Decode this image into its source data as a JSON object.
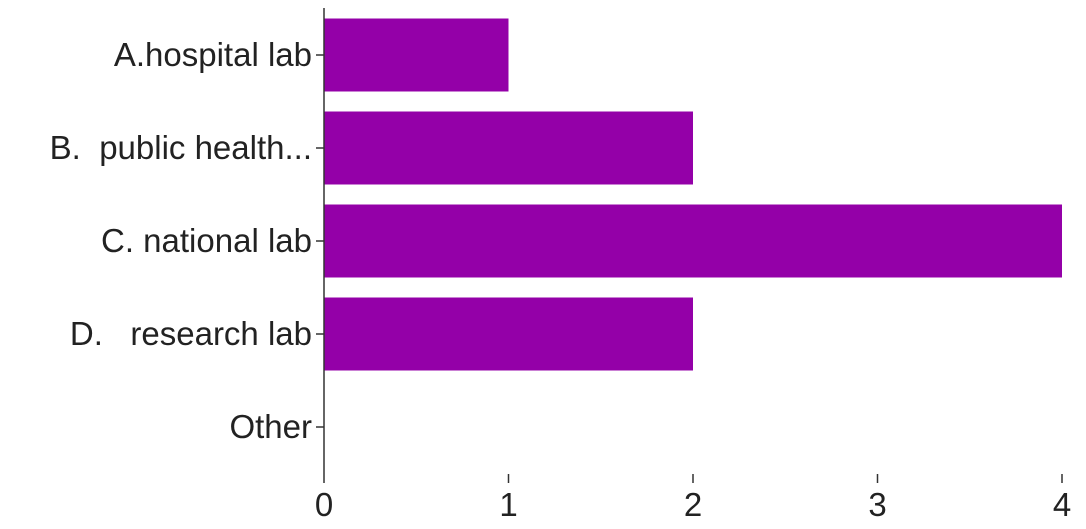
{
  "chart_data": {
    "type": "bar",
    "orientation": "horizontal",
    "categories": [
      "A.hospital lab",
      "B.  public health...",
      "C. national lab",
      "D.   research lab",
      "Other"
    ],
    "values": [
      1,
      2,
      4,
      2,
      0
    ],
    "xlim": [
      0,
      4
    ],
    "x_ticks": [
      "0",
      "1",
      "2",
      "3",
      "4"
    ],
    "title": "",
    "xlabel": "",
    "ylabel": "",
    "grid": false,
    "bar_color": "#9400a8"
  }
}
